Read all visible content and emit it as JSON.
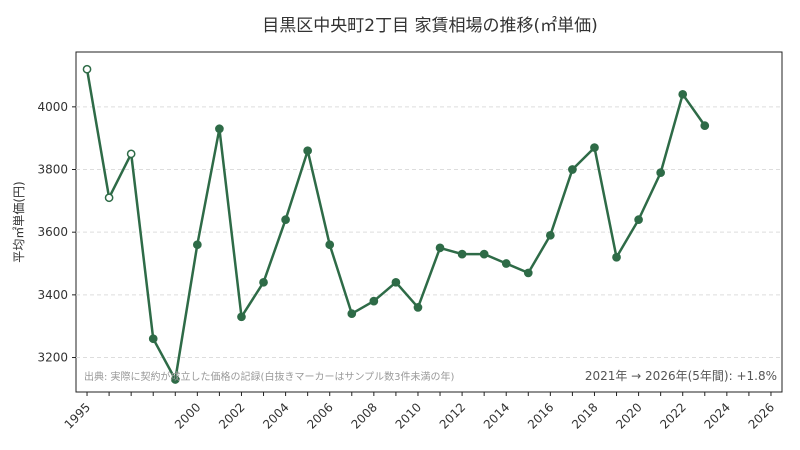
{
  "chart_data": {
    "type": "line",
    "title": "目黒区中央町2丁目 家賃相場の推移(㎡単価)",
    "ylabel": "平均㎡単価(円)",
    "xlabel": "",
    "xlim": [
      1994.5,
      2026.5
    ],
    "ylim": [
      3090,
      4175
    ],
    "yticks": [
      3200,
      3400,
      3600,
      3800,
      4000
    ],
    "xticks": [
      1995,
      2000,
      2002,
      2004,
      2006,
      2008,
      2010,
      2012,
      2014,
      2016,
      2018,
      2020,
      2022,
      2024,
      2026
    ],
    "grid": "horizontal dashed",
    "line_color": "#2e6b47",
    "open_marker_note": "hollow markers mark years with fewer than 3 samples",
    "points": [
      {
        "x": 1995,
        "y": 4120,
        "open": true
      },
      {
        "x": 1996,
        "y": 3710,
        "open": true
      },
      {
        "x": 1997,
        "y": 3850,
        "open": true
      },
      {
        "x": 1998,
        "y": 3260,
        "open": false
      },
      {
        "x": 1999,
        "y": 3130,
        "open": false
      },
      {
        "x": 2000,
        "y": 3560,
        "open": false
      },
      {
        "x": 2001,
        "y": 3930,
        "open": false
      },
      {
        "x": 2002,
        "y": 3330,
        "open": false
      },
      {
        "x": 2003,
        "y": 3440,
        "open": false
      },
      {
        "x": 2004,
        "y": 3640,
        "open": false
      },
      {
        "x": 2005,
        "y": 3860,
        "open": false
      },
      {
        "x": 2006,
        "y": 3560,
        "open": false
      },
      {
        "x": 2007,
        "y": 3340,
        "open": false
      },
      {
        "x": 2008,
        "y": 3380,
        "open": false
      },
      {
        "x": 2009,
        "y": 3440,
        "open": false
      },
      {
        "x": 2010,
        "y": 3360,
        "open": false
      },
      {
        "x": 2011,
        "y": 3550,
        "open": false
      },
      {
        "x": 2012,
        "y": 3530,
        "open": false
      },
      {
        "x": 2013,
        "y": 3530,
        "open": false
      },
      {
        "x": 2014,
        "y": 3500,
        "open": false
      },
      {
        "x": 2015,
        "y": 3470,
        "open": false
      },
      {
        "x": 2016,
        "y": 3590,
        "open": false
      },
      {
        "x": 2017,
        "y": 3800,
        "open": false
      },
      {
        "x": 2018,
        "y": 3870,
        "open": false
      },
      {
        "x": 2019,
        "y": 3520,
        "open": false
      },
      {
        "x": 2020,
        "y": 3640,
        "open": false
      },
      {
        "x": 2021,
        "y": 3790,
        "open": false
      },
      {
        "x": 2022,
        "y": 4040,
        "open": false
      },
      {
        "x": 2023,
        "y": 3940,
        "open": false
      }
    ],
    "source_note": "出典: 実際に契約が成立した価格の記録(白抜きマーカーはサンプル数3件未満の年)",
    "summary": "2021年 → 2026年(5年間): +1.8%"
  }
}
